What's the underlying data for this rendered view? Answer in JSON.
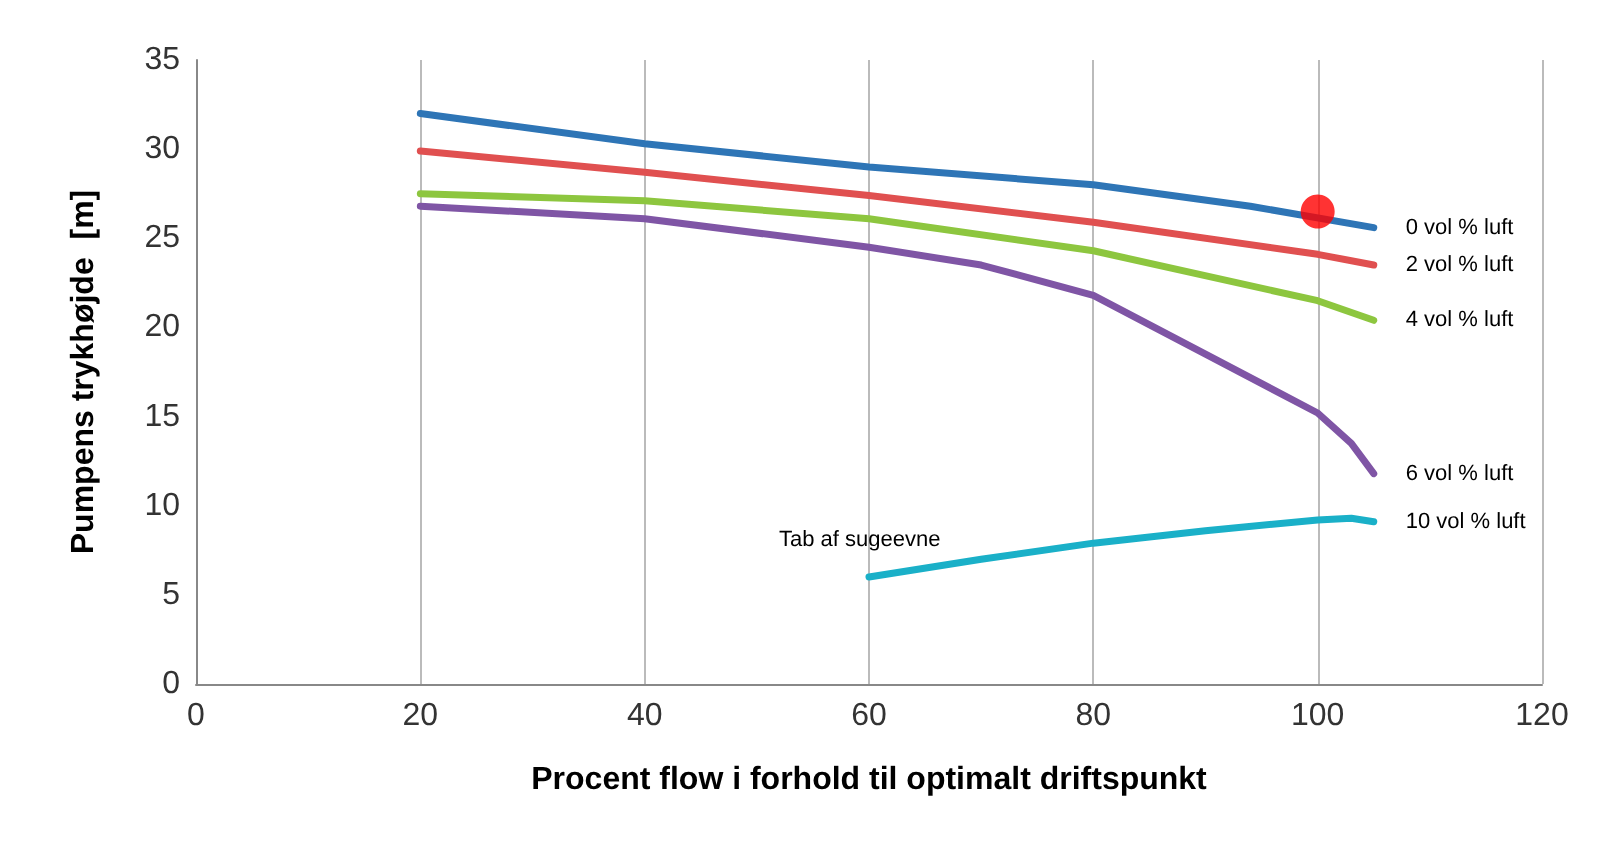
{
  "chart_data": {
    "type": "line",
    "xlabel": "Procent flow i forhold til optimalt driftspunkt",
    "ylabel": "Pumpens trykhøjde  [m]",
    "xlim": [
      0,
      120
    ],
    "xticks": [
      0,
      20,
      40,
      60,
      80,
      100,
      120
    ],
    "ylim": [
      0,
      35
    ],
    "yticks": [
      0,
      5,
      10,
      15,
      20,
      25,
      30,
      35
    ],
    "grid": "x",
    "marker": "none",
    "line_style": "solid",
    "series": [
      {
        "name": "0 vol % luft",
        "color": "#2e75b6",
        "x": [
          20,
          40,
          60,
          80,
          94,
          105
        ],
        "values": [
          32,
          30.3,
          29,
          28,
          26.8,
          25.6
        ]
      },
      {
        "name": "2 vol % luft",
        "color": "#e05050",
        "x": [
          20,
          40,
          60,
          80,
          100,
          105
        ],
        "values": [
          29.9,
          28.7,
          27.4,
          25.9,
          24.1,
          23.5
        ]
      },
      {
        "name": "4 vol % luft",
        "color": "#8dc63f",
        "x": [
          20,
          40,
          60,
          80,
          100,
          105
        ],
        "values": [
          27.5,
          27.1,
          26.1,
          24.3,
          21.5,
          20.4
        ]
      },
      {
        "name": "6 vol % luft",
        "color": "#7f55a5",
        "x": [
          20,
          40,
          60,
          70,
          80,
          90,
          100,
          103,
          105
        ],
        "values": [
          26.8,
          26.1,
          24.5,
          23.5,
          21.8,
          18.5,
          15.2,
          13.5,
          11.8
        ]
      },
      {
        "name": "10 vol % luft",
        "color": "#1ab0c8",
        "x": [
          60,
          70,
          80,
          90,
          100,
          103,
          105
        ],
        "values": [
          6,
          7,
          7.9,
          8.6,
          9.2,
          9.3,
          9.1
        ]
      },
      {
        "type": "scatter",
        "color": "#ff0000",
        "marker": "circle",
        "x": [
          100
        ],
        "values": [
          26.5
        ]
      }
    ],
    "annotations": [
      {
        "text": "Tab af sugeevne",
        "x": 60,
        "y": 6
      }
    ]
  }
}
